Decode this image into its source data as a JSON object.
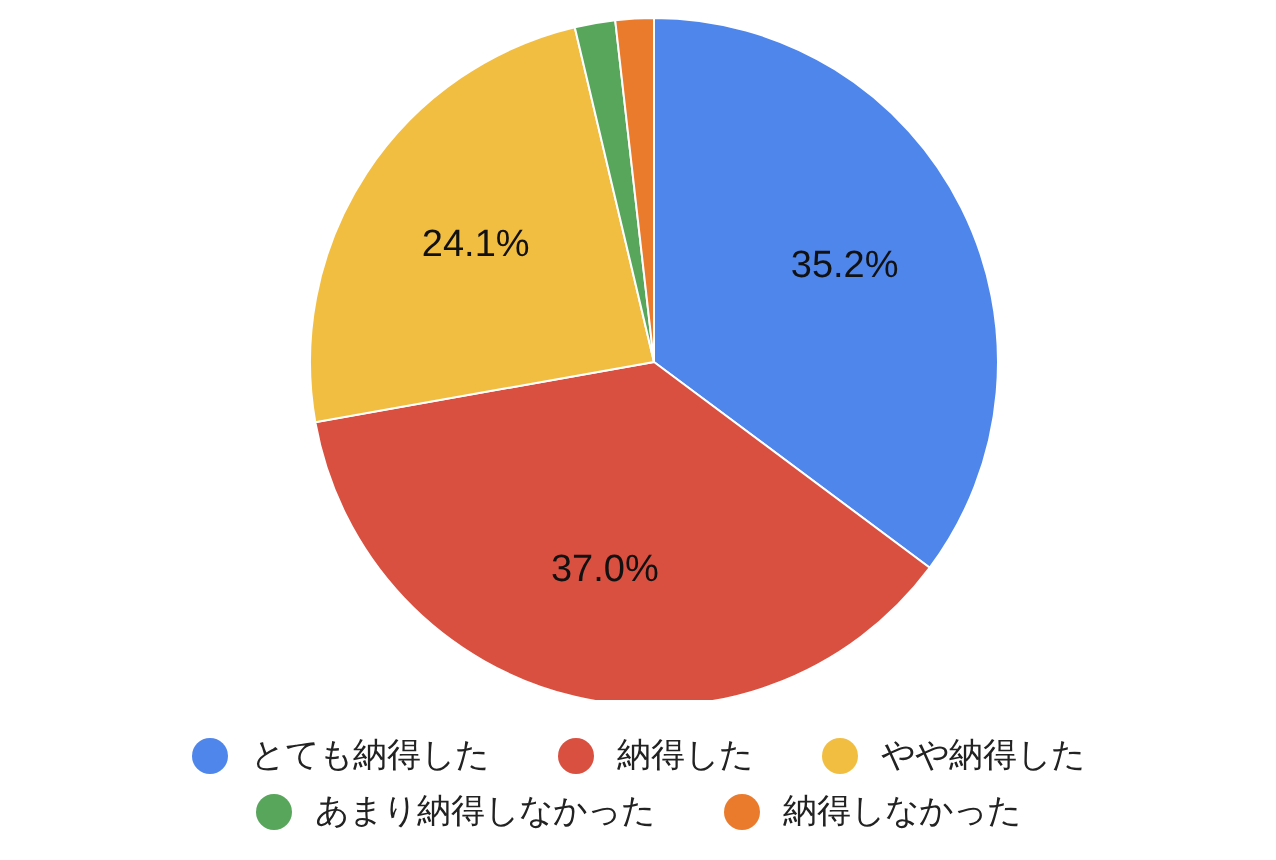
{
  "chart_data": {
    "type": "pie",
    "categories": [
      "とても納得した",
      "納得した",
      "やや納得した",
      "あまり納得しなかった",
      "納得しなかった"
    ],
    "values": [
      35.2,
      37.0,
      24.1,
      1.9,
      1.8
    ],
    "colors": [
      "#4f86ec",
      "#d95040",
      "#f2be42",
      "#58a55c",
      "#eb7b2c"
    ],
    "value_labels": [
      "35.2%",
      "37.0%",
      "24.1%",
      null,
      null
    ],
    "legend": "bottom"
  }
}
